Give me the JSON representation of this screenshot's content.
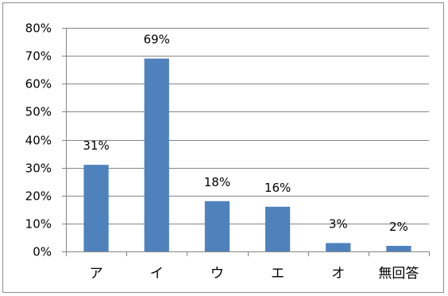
{
  "chart_data": {
    "type": "bar",
    "categories": [
      "ア",
      "イ",
      "ウ",
      "エ",
      "オ",
      "無回答"
    ],
    "values": [
      31,
      69,
      18,
      16,
      3,
      2
    ],
    "data_labels": [
      "31%",
      "69%",
      "18%",
      "16%",
      "3%",
      "2%"
    ],
    "ylim": [
      0,
      80
    ],
    "y_ticks": [
      0,
      10,
      20,
      30,
      40,
      50,
      60,
      70,
      80
    ],
    "y_tick_labels": [
      "0%",
      "10%",
      "20%",
      "30%",
      "40%",
      "50%",
      "60%",
      "70%",
      "80%"
    ],
    "grid": true,
    "legend": "none",
    "title": "",
    "xlabel": "",
    "ylabel": "",
    "colors": {
      "bar": "#4f81bd",
      "grid": "#868686",
      "axis": "#868686",
      "frame": "#8c8c8c"
    }
  }
}
